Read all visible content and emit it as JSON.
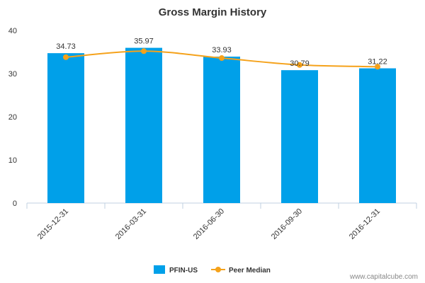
{
  "chart_data": {
    "type": "bar",
    "title": "Gross Margin History",
    "categories": [
      "2015-12-31",
      "2016-03-31",
      "2016-06-30",
      "2016-09-30",
      "2016-12-31"
    ],
    "series": [
      {
        "name": "PFIN-US",
        "kind": "bar",
        "color": "#00a0e9",
        "values": [
          34.73,
          35.97,
          33.93,
          30.79,
          31.22
        ],
        "data_labels": [
          "34.73",
          "35.97",
          "33.93",
          "30.79",
          "31.22"
        ]
      },
      {
        "name": "Peer Median",
        "kind": "line",
        "color": "#f5a21b",
        "values": [
          33.8,
          35.2,
          33.6,
          32.0,
          31.6
        ]
      }
    ],
    "yticks": [
      0,
      10,
      20,
      30,
      40
    ],
    "ytick_labels": [
      "0",
      "10",
      "20",
      "30",
      "40"
    ],
    "ylim": [
      0,
      40
    ],
    "xlabel": "",
    "ylabel": "",
    "grid": false,
    "legend": {
      "position": "bottom-center",
      "items": [
        "PFIN-US",
        "Peer Median"
      ]
    }
  },
  "footer": {
    "source": "www.capitalcube.com"
  }
}
